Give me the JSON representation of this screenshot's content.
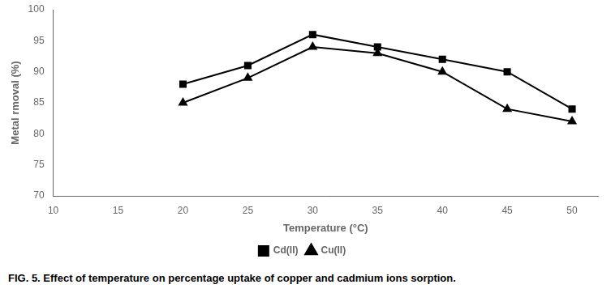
{
  "chart_data": {
    "type": "line",
    "x": [
      20,
      25,
      30,
      35,
      40,
      45,
      50
    ],
    "series": [
      {
        "name": "Cd(II)",
        "color": "#000000",
        "marker": "square",
        "values": [
          88,
          91,
          96,
          94,
          92,
          90,
          84
        ]
      },
      {
        "name": "Cu(II)",
        "color": "#000000",
        "marker": "triangle",
        "values": [
          85,
          89,
          94,
          93,
          90,
          84,
          82
        ]
      }
    ],
    "x_label": "Temperature (°C)",
    "y_label": "Metal rmoval (%)",
    "caption": "FIG. 5. Effect of temperature on percentage uptake of copper and cadmium ions sorption.",
    "xlim": [
      10,
      52
    ],
    "ylim": [
      70,
      100
    ],
    "xticks": [
      10,
      15,
      20,
      25,
      30,
      35,
      40,
      45,
      50
    ],
    "yticks": [
      70,
      75,
      80,
      85,
      90,
      95,
      100
    ],
    "grid": false,
    "legend": "bottom"
  }
}
